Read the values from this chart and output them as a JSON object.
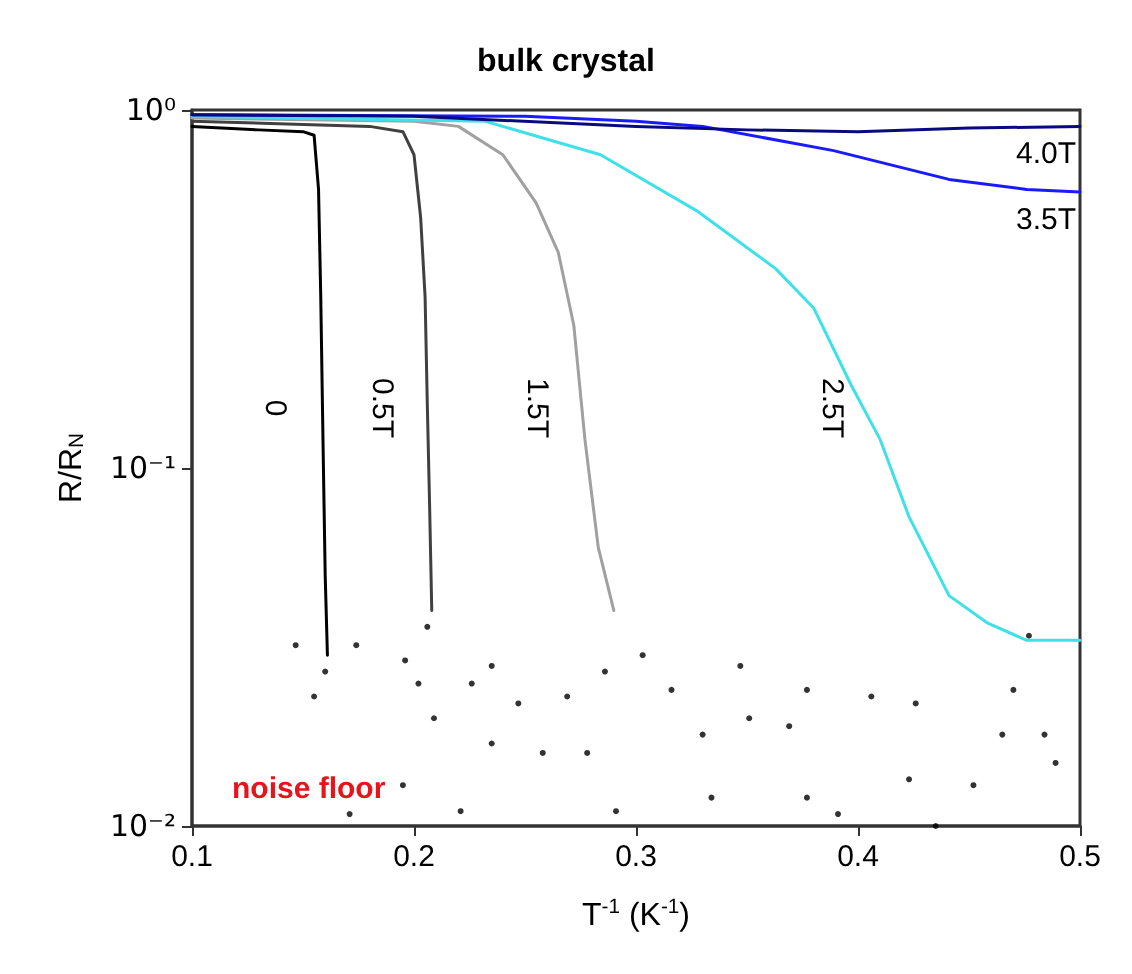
{
  "chart_data": {
    "type": "line",
    "title": "bulk crystal",
    "xlabel": "T$^{-1}$ (K$^{-1}$)",
    "ylabel": "R/R$_{N}$",
    "log": "y",
    "grid": false,
    "legend": false,
    "xlim": [
      0.1,
      0.5
    ],
    "xticks": [
      0.1,
      0.2,
      0.3,
      0.4,
      0.5
    ],
    "ylim": [
      0.01,
      1
    ],
    "yticks": [
      {
        "value": 1,
        "label": "10⁰"
      },
      {
        "value": 0.1,
        "label": "10⁻¹"
      },
      {
        "value": 0.01,
        "label": "10⁻²"
      }
    ],
    "annotations": [
      "noise floor"
    ],
    "series": [
      {
        "name": "0",
        "color": "#000000",
        "x": [
          0.1,
          0.13,
          0.15,
          0.155,
          0.157,
          0.158,
          0.159,
          0.16,
          0.161
        ],
        "values": [
          0.9,
          0.88,
          0.87,
          0.85,
          0.6,
          0.3,
          0.12,
          0.05,
          0.03
        ]
      },
      {
        "name": "0.5T",
        "color": "#404040",
        "x": [
          0.1,
          0.18,
          0.195,
          0.2,
          0.203,
          0.205,
          0.206,
          0.207,
          0.208
        ],
        "values": [
          0.93,
          0.9,
          0.87,
          0.75,
          0.5,
          0.3,
          0.15,
          0.08,
          0.04
        ]
      },
      {
        "name": "1.5T",
        "color": "#a0a0a0",
        "x": [
          0.1,
          0.2,
          0.22,
          0.24,
          0.255,
          0.265,
          0.272,
          0.277,
          0.283,
          0.29
        ],
        "values": [
          0.95,
          0.93,
          0.9,
          0.75,
          0.55,
          0.4,
          0.25,
          0.12,
          0.06,
          0.04
        ]
      },
      {
        "name": "2.5T",
        "color": "#40e0e8",
        "x": [
          0.1,
          0.232,
          0.284,
          0.328,
          0.363,
          0.38,
          0.397,
          0.41,
          0.423,
          0.441,
          0.458,
          0.476,
          0.5
        ],
        "values": [
          0.96,
          0.93,
          0.75,
          0.52,
          0.36,
          0.28,
          0.17,
          0.12,
          0.073,
          0.044,
          0.037,
          0.033,
          0.033
        ]
      },
      {
        "name": "3.5T",
        "color": "#1a1aff",
        "x": [
          0.1,
          0.25,
          0.3,
          0.33,
          0.389,
          0.441,
          0.476,
          0.5
        ],
        "values": [
          0.97,
          0.96,
          0.93,
          0.9,
          0.77,
          0.64,
          0.6,
          0.59
        ]
      },
      {
        "name": "4.0T",
        "color": "#0a0a80",
        "x": [
          0.1,
          0.2,
          0.3,
          0.35,
          0.4,
          0.45,
          0.5
        ],
        "values": [
          0.97,
          0.96,
          0.9,
          0.88,
          0.87,
          0.89,
          0.9
        ]
      },
      {
        "type": "scatter",
        "color": "#000000",
        "x": [
          0.1467,
          0.174,
          0.196,
          0.206,
          0.202,
          0.16,
          0.155,
          0.209,
          0.171,
          0.226,
          0.235,
          0.247,
          0.258,
          0.269,
          0.286,
          0.303,
          0.316,
          0.33,
          0.347,
          0.351,
          0.369,
          0.377,
          0.391,
          0.406,
          0.423,
          0.426,
          0.435,
          0.452,
          0.465,
          0.47,
          0.477,
          0.484,
          0.489,
          0.235,
          0.195,
          0.221,
          0.291,
          0.278,
          0.334,
          0.377
        ],
        "values": [
          0.032,
          0.032,
          0.029,
          0.036,
          0.025,
          0.027,
          0.023,
          0.02,
          0.0108,
          0.025,
          0.017,
          0.022,
          0.016,
          0.023,
          0.027,
          0.03,
          0.024,
          0.018,
          0.028,
          0.02,
          0.019,
          0.024,
          0.0108,
          0.023,
          0.0135,
          0.022,
          0.01,
          0.013,
          0.018,
          0.024,
          0.034,
          0.018,
          0.015,
          0.028,
          0.013,
          0.011,
          0.011,
          0.016,
          0.012,
          0.012
        ]
      }
    ]
  }
}
